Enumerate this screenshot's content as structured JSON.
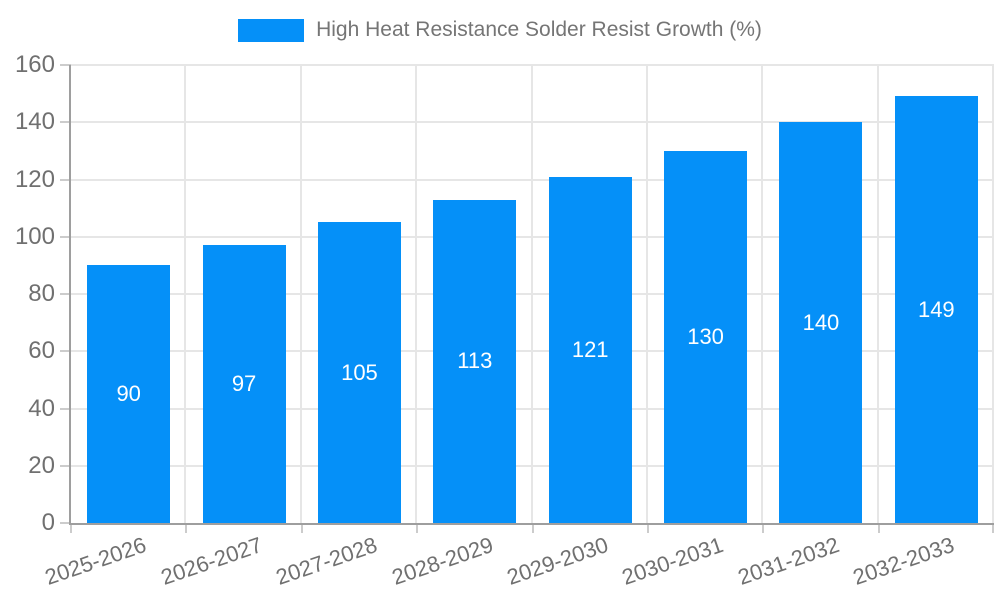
{
  "legend": {
    "label": "High Heat Resistance Solder Resist Growth (%)"
  },
  "chart_data": {
    "type": "bar",
    "title": "High Heat Resistance Solder Resist Growth (%)",
    "categories": [
      "2025-2026",
      "2026-2027",
      "2027-2028",
      "2028-2029",
      "2029-2030",
      "2030-2031",
      "2031-2032",
      "2032-2033"
    ],
    "values": [
      90,
      97,
      105,
      113,
      121,
      130,
      140,
      149
    ],
    "xlabel": "",
    "ylabel": "",
    "ylim": [
      0,
      160
    ],
    "yticks": [
      0,
      20,
      40,
      60,
      80,
      100,
      120,
      140,
      160
    ],
    "grid": true,
    "legend_position": "top",
    "value_labels_inside_bars": true
  },
  "palette": {
    "bar": "#0590f8",
    "grid": "#e6e6e6",
    "axis": "#9e9e9e",
    "tick": "#cccccc",
    "axis_label": "#707070",
    "legend_text": "#757575",
    "value_label": "#ffffff",
    "background": "#ffffff"
  }
}
